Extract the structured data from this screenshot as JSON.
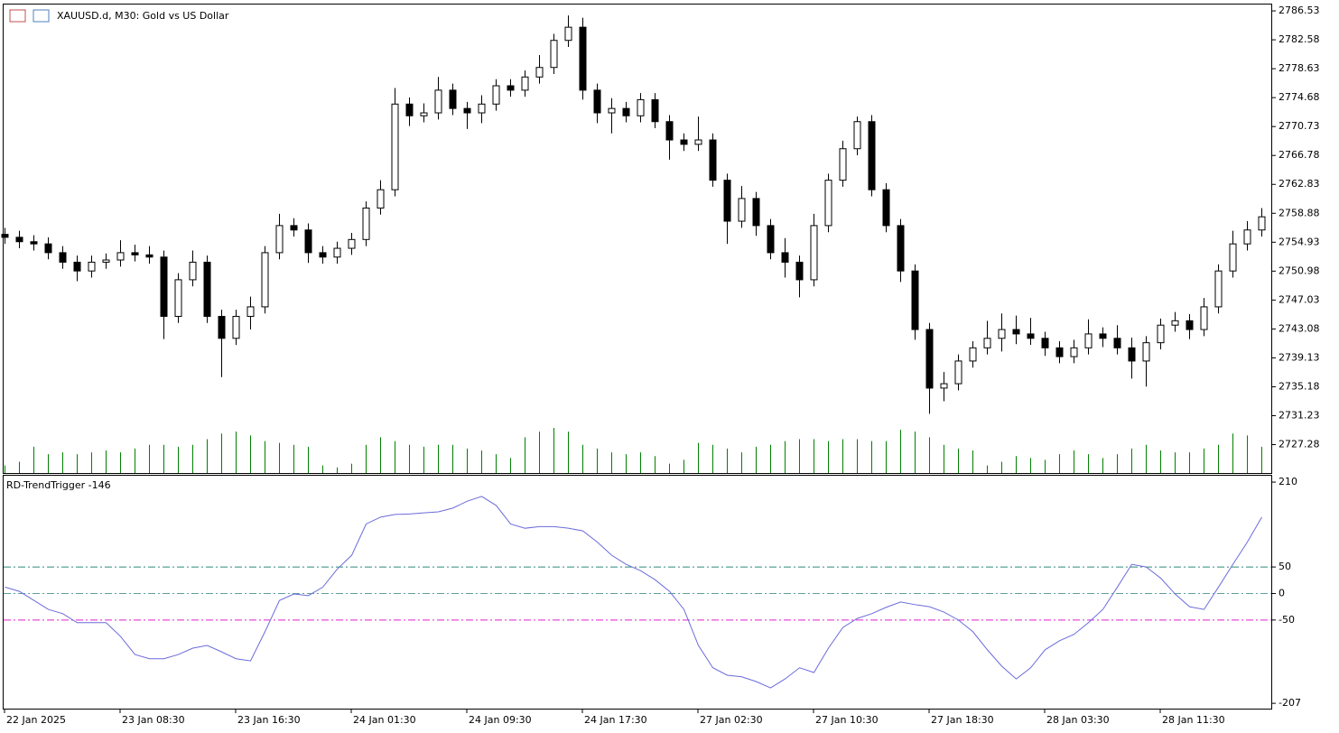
{
  "chart_data": [
    {
      "type": "candlestick",
      "title": "XAUUSD.d, M30:  Gold vs US Dollar",
      "categories": [
        "22 Jan 2025",
        null,
        null,
        null,
        null,
        null,
        null,
        null,
        "23 Jan 08:30",
        null,
        null,
        null,
        null,
        null,
        null,
        null,
        "23 Jan 16:30",
        null,
        null,
        null,
        null,
        null,
        null,
        null,
        "24 Jan 01:30",
        null,
        null,
        null,
        null,
        null,
        null,
        null,
        "24 Jan 09:30",
        null,
        null,
        null,
        null,
        null,
        null,
        null,
        "24 Jan 17:30",
        null,
        null,
        null,
        null,
        null,
        null,
        null,
        "27 Jan 02:30",
        null,
        null,
        null,
        null,
        null,
        null,
        null,
        "27 Jan 10:30",
        null,
        null,
        null,
        null,
        null,
        null,
        null,
        "27 Jan 18:30",
        null,
        null,
        null,
        null,
        null,
        null,
        null,
        "28 Jan 03:30",
        null,
        null,
        null,
        null,
        null,
        null,
        null,
        "28 Jan 11:30",
        null,
        null,
        null,
        null,
        null,
        null,
        null
      ],
      "open": [
        2756.0,
        2755.6,
        2755.0,
        2754.7,
        2753.5,
        2752.2,
        2751.0,
        2752.2,
        2752.5,
        2753.5,
        2753.2,
        2752.9,
        2744.8,
        2749.8,
        2752.2,
        2744.8,
        2741.8,
        2744.8,
        2746.1,
        2753.5,
        2757.2,
        2756.6,
        2753.5,
        2752.9,
        2754.1,
        2755.3,
        2759.6,
        2762.1,
        2773.8,
        2772.2,
        2772.6,
        2775.7,
        2773.2,
        2772.6,
        2773.8,
        2776.3,
        2775.7,
        2777.5,
        2778.8,
        2782.5,
        2784.3,
        2775.7,
        2772.6,
        2773.2,
        2772.2,
        2774.4,
        2771.4,
        2768.9,
        2768.3,
        2768.9,
        2763.4,
        2757.8,
        2760.9,
        2757.2,
        2753.5,
        2752.2,
        2749.8,
        2757.2,
        2763.4,
        2767.7,
        2771.4,
        2762.1,
        2757.2,
        2751.0,
        2743.0,
        2735.0,
        2735.6,
        2738.7,
        2740.5,
        2741.8,
        2743.0,
        2742.4,
        2741.8,
        2740.5,
        2739.3,
        2740.5,
        2742.4,
        2741.8,
        2740.5,
        2738.7,
        2741.2,
        2743.6,
        2744.2,
        2743.0,
        2746.1,
        2751.0,
        2754.7,
        2756.6
      ],
      "high": [
        2756.9,
        2756.5,
        2755.9,
        2755.6,
        2754.4,
        2753.1,
        2753.1,
        2753.4,
        2755.2,
        2754.6,
        2754.4,
        2753.8,
        2750.7,
        2753.8,
        2753.1,
        2745.7,
        2745.7,
        2747.5,
        2754.4,
        2758.8,
        2758.2,
        2757.5,
        2754.4,
        2755.0,
        2756.2,
        2760.5,
        2763.4,
        2776.0,
        2774.7,
        2773.9,
        2777.5,
        2776.6,
        2774.1,
        2775.0,
        2777.2,
        2777.2,
        2778.4,
        2780.5,
        2783.4,
        2785.9,
        2785.6,
        2776.6,
        2774.6,
        2774.1,
        2775.3,
        2775.3,
        2772.3,
        2769.8,
        2772.1,
        2769.8,
        2764.3,
        2762.6,
        2761.8,
        2758.1,
        2755.5,
        2753.1,
        2758.8,
        2764.3,
        2768.8,
        2772.1,
        2772.3,
        2763.0,
        2758.1,
        2751.9,
        2743.9,
        2737.2,
        2739.6,
        2741.4,
        2744.2,
        2745.2,
        2744.9,
        2744.6,
        2742.7,
        2741.4,
        2741.6,
        2744.4,
        2743.3,
        2743.6,
        2741.9,
        2742.1,
        2744.5,
        2745.4,
        2745.1,
        2747.3,
        2751.9,
        2756.5,
        2757.8,
        2759.6
      ],
      "low": [
        2754.7,
        2754.1,
        2753.8,
        2752.6,
        2751.3,
        2749.6,
        2750.1,
        2751.3,
        2751.6,
        2752.3,
        2752.0,
        2741.7,
        2743.9,
        2748.9,
        2743.9,
        2736.5,
        2740.9,
        2743.0,
        2745.2,
        2752.6,
        2755.7,
        2752.1,
        2752.0,
        2752.0,
        2753.2,
        2754.4,
        2758.7,
        2761.2,
        2770.8,
        2771.3,
        2771.7,
        2772.3,
        2770.4,
        2771.2,
        2772.9,
        2774.8,
        2774.8,
        2776.6,
        2777.9,
        2781.6,
        2774.4,
        2771.2,
        2769.8,
        2771.3,
        2771.3,
        2770.5,
        2766.2,
        2767.4,
        2767.4,
        2762.5,
        2754.7,
        2756.9,
        2755.8,
        2752.6,
        2750.1,
        2747.4,
        2748.9,
        2756.3,
        2762.5,
        2766.8,
        2761.2,
        2756.3,
        2749.5,
        2741.6,
        2731.5,
        2733.2,
        2734.7,
        2737.8,
        2739.6,
        2740.0,
        2741.0,
        2740.9,
        2739.4,
        2738.4,
        2738.4,
        2739.6,
        2740.6,
        2739.6,
        2736.3,
        2735.2,
        2740.3,
        2742.7,
        2741.7,
        2742.1,
        2745.2,
        2750.1,
        2753.8,
        2755.7
      ],
      "close": [
        2755.6,
        2755.0,
        2754.7,
        2753.5,
        2752.2,
        2751.0,
        2752.2,
        2752.5,
        2753.5,
        2753.2,
        2752.9,
        2744.8,
        2749.8,
        2752.2,
        2744.8,
        2741.8,
        2744.8,
        2746.1,
        2753.5,
        2757.2,
        2756.6,
        2753.5,
        2752.9,
        2754.1,
        2755.3,
        2759.6,
        2762.1,
        2773.8,
        2772.2,
        2772.6,
        2775.7,
        2773.2,
        2772.6,
        2773.8,
        2776.3,
        2775.7,
        2777.5,
        2778.8,
        2782.5,
        2784.3,
        2775.7,
        2772.6,
        2773.2,
        2772.2,
        2774.4,
        2771.4,
        2768.9,
        2768.3,
        2768.9,
        2763.4,
        2757.8,
        2760.9,
        2757.2,
        2753.5,
        2752.2,
        2749.8,
        2757.2,
        2763.4,
        2767.7,
        2771.4,
        2762.1,
        2757.2,
        2751.0,
        2743.0,
        2735.0,
        2735.6,
        2738.7,
        2740.5,
        2741.8,
        2743.0,
        2742.4,
        2741.8,
        2740.5,
        2739.3,
        2740.5,
        2742.4,
        2741.8,
        2740.5,
        2738.7,
        2741.2,
        2743.6,
        2744.2,
        2743.0,
        2746.1,
        2751.0,
        2754.7,
        2756.6,
        2758.4
      ],
      "volume": [
        8,
        12,
        28,
        20,
        22,
        20,
        22,
        24,
        22,
        26,
        30,
        30,
        28,
        30,
        36,
        42,
        44,
        40,
        34,
        32,
        30,
        28,
        8,
        6,
        10,
        30,
        38,
        34,
        30,
        28,
        30,
        30,
        26,
        24,
        20,
        16,
        38,
        44,
        48,
        44,
        30,
        26,
        22,
        20,
        22,
        18,
        10,
        14,
        32,
        30,
        26,
        22,
        28,
        30,
        34,
        36,
        36,
        34,
        36,
        36,
        34,
        34,
        46,
        44,
        38,
        30,
        26,
        24,
        8,
        12,
        18,
        16,
        14,
        20,
        24,
        20,
        16,
        20,
        26,
        30,
        24,
        22,
        22,
        26,
        30,
        42,
        40,
        28
      ],
      "up_color": "#ffffff",
      "down_color": "#000000",
      "volume_color": "#008000",
      "ylim": [
        2723.4,
        2787.4
      ],
      "yticks": [
        2786.53,
        2782.58,
        2778.63,
        2774.68,
        2770.73,
        2766.78,
        2762.83,
        2758.88,
        2754.93,
        2750.98,
        2747.03,
        2743.08,
        2739.13,
        2735.18,
        2731.23,
        2727.28
      ]
    },
    {
      "type": "line",
      "title": "RD-TrendTrigger -146",
      "series": [
        {
          "color": "#6b6bdc",
          "values": [
            12,
            4,
            -13,
            -30,
            -38,
            -55,
            -55,
            -55,
            -81,
            -115,
            -123,
            -123,
            -115,
            -103,
            -98,
            -110,
            -123,
            -127,
            -72,
            -13,
            -1,
            -4,
            12,
            46,
            72,
            131,
            144,
            149,
            150,
            152,
            154,
            161,
            174,
            183,
            166,
            131,
            123,
            126,
            126,
            123,
            118,
            97,
            72,
            55,
            43,
            26,
            4,
            -30,
            -98,
            -140,
            -154,
            -157,
            -166,
            -178,
            -161,
            -140,
            -149,
            -103,
            -64,
            -47,
            -38,
            -26,
            -16,
            -21,
            -25,
            -35,
            -50,
            -72,
            -106,
            -137,
            -161,
            -140,
            -106,
            -89,
            -77,
            -55,
            -30,
            12,
            55,
            50,
            29,
            -1,
            -25,
            -30,
            12,
            55,
            97,
            144
          ]
        }
      ],
      "levels": [
        50,
        0,
        -50
      ],
      "level_colors": [
        "#2e8b7a",
        "#5f9ea0",
        "#e020d0"
      ],
      "ylim": [
        -217,
        222
      ],
      "yticks": [
        210,
        50,
        0,
        -50,
        -207
      ]
    }
  ]
}
